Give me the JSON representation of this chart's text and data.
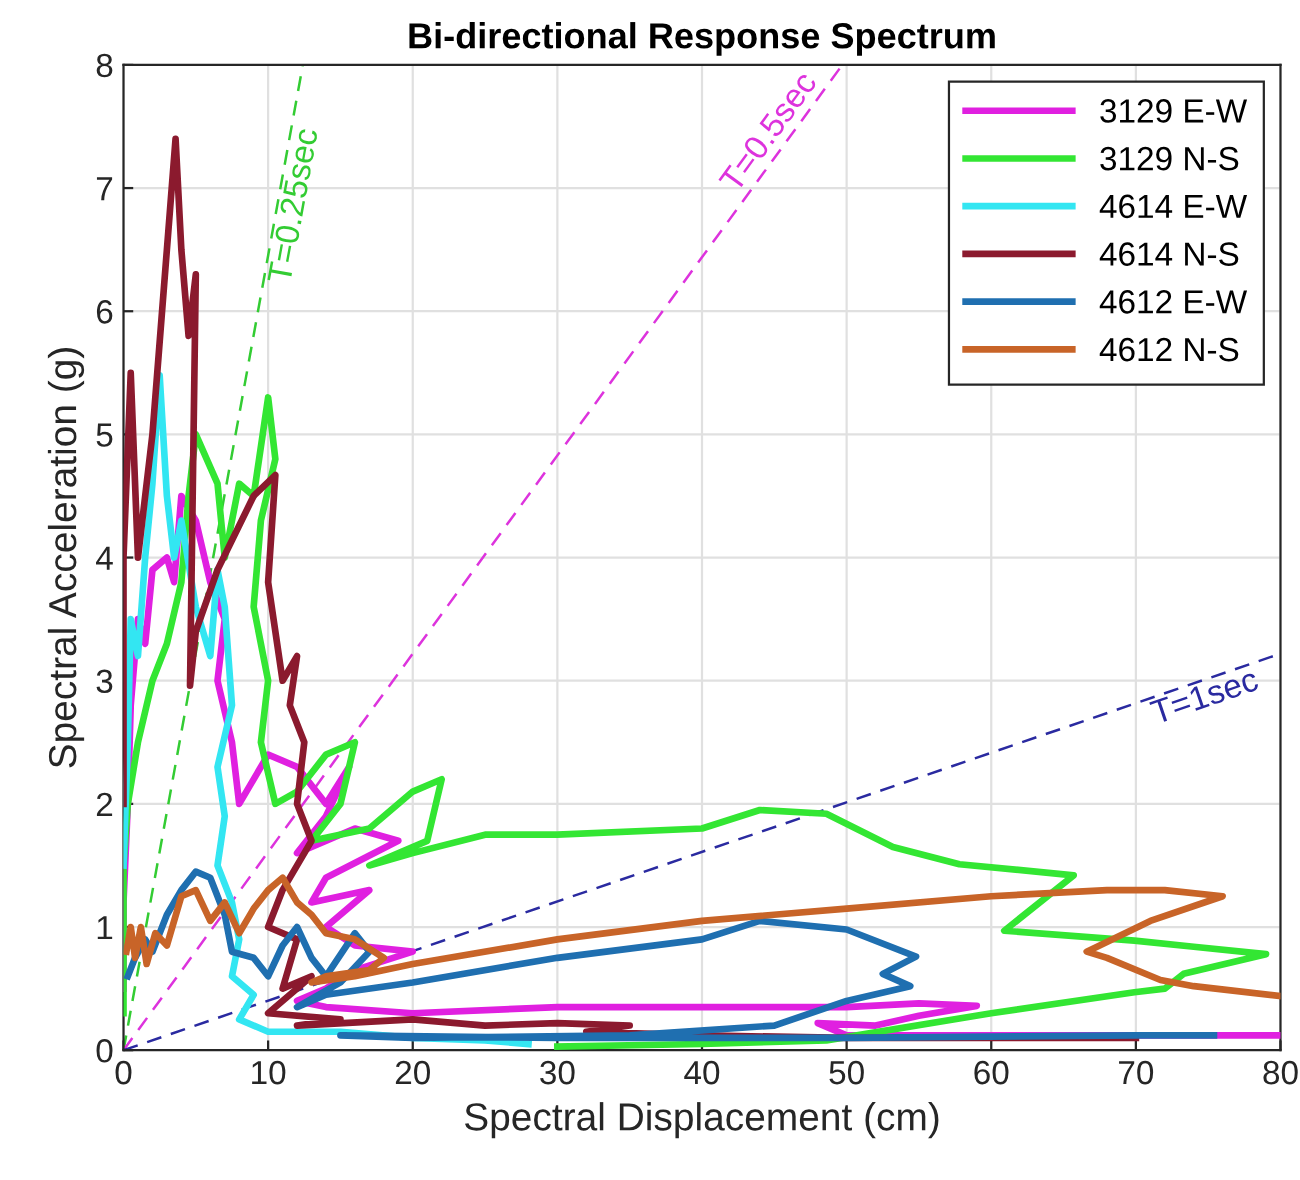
{
  "chart_data": {
    "type": "line",
    "title": "Bi-directional Response Spectrum",
    "xlabel": "Spectral Displacement (cm)",
    "ylabel": "Spectral Acceleration (g)",
    "xlim": [
      0,
      80
    ],
    "ylim": [
      0,
      8
    ],
    "xticks": [
      0,
      10,
      20,
      30,
      40,
      50,
      60,
      70,
      80
    ],
    "yticks": [
      0,
      1,
      2,
      3,
      4,
      5,
      6,
      7,
      8
    ],
    "grid": true,
    "legend": "top right",
    "line_style": "solid",
    "marker": "none",
    "series": [
      {
        "name": "3129 E-W",
        "color": "#e020e0",
        "x": [
          0,
          0,
          0.3,
          0.5,
          1,
          1.5,
          2,
          3,
          3.5,
          4,
          5,
          6,
          7,
          6.5,
          7.5,
          8,
          10,
          12,
          14,
          15.6,
          14,
          12,
          16,
          19,
          14,
          13,
          17,
          14,
          16,
          20,
          16,
          14,
          12,
          14,
          20,
          30,
          40,
          50,
          55,
          59,
          55,
          52,
          48,
          50,
          60,
          75,
          80
        ],
        "values": [
          0.5,
          1.2,
          2.0,
          2.8,
          3.5,
          3.3,
          3.9,
          4.0,
          3.8,
          4.5,
          4.3,
          3.8,
          3.5,
          3.0,
          2.5,
          2.0,
          2.4,
          2.3,
          2.0,
          2.3,
          1.9,
          1.6,
          1.8,
          1.7,
          1.4,
          1.2,
          1.3,
          1.0,
          0.85,
          0.8,
          0.65,
          0.5,
          0.4,
          0.35,
          0.3,
          0.35,
          0.35,
          0.35,
          0.38,
          0.36,
          0.28,
          0.2,
          0.22,
          0.12,
          0.12,
          0.12,
          0.12
        ]
      },
      {
        "name": "3129 N-S",
        "color": "#33e633",
        "x": [
          0,
          0,
          0,
          0.3,
          1,
          2,
          3,
          4,
          4.5,
          5,
          6.5,
          7,
          8,
          9,
          10,
          10.5,
          9.5,
          9,
          10,
          9.5,
          10.5,
          12,
          14,
          16,
          15,
          13,
          17,
          20,
          22,
          21,
          17,
          20,
          25,
          30,
          40,
          44,
          48.6,
          53.2,
          57.8,
          65.7,
          60.9,
          69.9,
          74,
          79,
          73.3,
          72,
          69.9,
          60,
          48.6,
          40,
          30
        ],
        "values": [
          0.3,
          1.0,
          1.5,
          2.0,
          2.5,
          3.0,
          3.3,
          3.8,
          4.5,
          5.0,
          4.6,
          4.0,
          4.6,
          4.5,
          5.3,
          4.8,
          4.3,
          3.6,
          3.0,
          2.5,
          2.0,
          2.1,
          2.4,
          2.5,
          2.0,
          1.7,
          1.8,
          2.1,
          2.2,
          1.7,
          1.5,
          1.6,
          1.75,
          1.75,
          1.8,
          1.95,
          1.92,
          1.65,
          1.51,
          1.42,
          0.97,
          0.89,
          0.84,
          0.78,
          0.62,
          0.5,
          0.47,
          0.3,
          0.08,
          0.05,
          0.03
        ]
      },
      {
        "name": "4614 E-W",
        "color": "#33e6f2",
        "x": [
          0,
          0.3,
          0.5,
          1,
          1.5,
          2,
          2.5,
          3,
          3.5,
          4,
          5,
          6,
          6.5,
          7,
          7.5,
          6.5,
          7,
          6.5,
          7.5,
          8,
          7.5,
          9,
          8,
          10,
          15,
          20,
          25,
          28
        ],
        "values": [
          1.5,
          2.5,
          3.5,
          3.2,
          4.0,
          4.6,
          5.48,
          4.5,
          4.0,
          4.3,
          3.6,
          3.2,
          3.9,
          3.6,
          2.8,
          2.3,
          1.9,
          1.5,
          1.2,
          0.9,
          0.6,
          0.45,
          0.25,
          0.15,
          0.15,
          0.1,
          0.08,
          0.05
        ]
      },
      {
        "name": "4614 N-S",
        "color": "#8b1a2e",
        "x": [
          0,
          0,
          0.5,
          1,
          1.5,
          2,
          3,
          3.6,
          4,
          4.5,
          5,
          4.6,
          5,
          6.5,
          9,
          10.5,
          10,
          11,
          12,
          11.5,
          12.5,
          12,
          13,
          11,
          10,
          12,
          11,
          13,
          10,
          15,
          12,
          20,
          25,
          30,
          35,
          32,
          40,
          50,
          60,
          70
        ],
        "values": [
          2.0,
          4.0,
          5.5,
          4.0,
          4.5,
          5.0,
          6.5,
          7.4,
          6.5,
          5.8,
          6.3,
          2.96,
          3.4,
          3.9,
          4.5,
          4.67,
          3.8,
          3.0,
          3.2,
          2.8,
          2.5,
          2.0,
          1.7,
          1.3,
          1.0,
          0.9,
          0.5,
          0.6,
          0.3,
          0.25,
          0.2,
          0.25,
          0.2,
          0.22,
          0.2,
          0.15,
          0.12,
          0.1,
          0.1,
          0.1
        ]
      },
      {
        "name": "4612 E-W",
        "color": "#1f6fb0",
        "x": [
          0.3,
          0.8,
          1.5,
          2,
          3,
          4,
          5,
          6,
          7,
          7.5,
          9,
          10,
          11,
          12,
          13,
          14,
          16,
          17,
          15,
          12,
          14,
          20,
          30,
          40,
          44,
          50,
          54.8,
          52.5,
          54.4,
          50,
          45,
          35,
          20,
          15,
          30,
          50,
          70,
          75.4
        ],
        "values": [
          0.6,
          0.75,
          0.9,
          0.8,
          1.1,
          1.3,
          1.45,
          1.4,
          1.1,
          0.8,
          0.75,
          0.6,
          0.85,
          1.0,
          0.75,
          0.6,
          0.95,
          0.8,
          0.55,
          0.35,
          0.45,
          0.55,
          0.75,
          0.9,
          1.05,
          0.98,
          0.76,
          0.62,
          0.52,
          0.4,
          0.2,
          0.12,
          0.1,
          0.12,
          0.1,
          0.1,
          0.12,
          0.12
        ]
      },
      {
        "name": "4612 N-S",
        "color": "#c86428",
        "x": [
          0.2,
          0.5,
          0.8,
          1.2,
          1.6,
          2.2,
          3,
          4,
          5,
          6,
          7,
          8,
          9,
          10,
          11,
          12,
          13,
          14,
          16,
          18,
          17,
          14,
          13,
          16,
          20,
          30,
          40,
          50,
          60,
          68,
          72,
          76,
          71,
          66.6,
          68,
          71.7,
          74,
          80
        ],
        "values": [
          0.8,
          1.0,
          0.75,
          1.0,
          0.7,
          0.95,
          0.85,
          1.25,
          1.3,
          1.05,
          1.2,
          0.95,
          1.15,
          1.3,
          1.4,
          1.2,
          1.1,
          0.95,
          0.9,
          0.75,
          0.65,
          0.6,
          0.55,
          0.6,
          0.7,
          0.9,
          1.05,
          1.15,
          1.25,
          1.3,
          1.3,
          1.25,
          1.05,
          0.8,
          0.75,
          0.57,
          0.52,
          0.44
        ]
      },
      {
        "type": "line",
        "line_style": "dashed",
        "color": "#33cc33",
        "x": [
          0,
          12.4
        ],
        "values": [
          0,
          8
        ]
      },
      {
        "type": "line",
        "line_style": "dashed",
        "color": "#dd33dd",
        "x": [
          0,
          49.7
        ],
        "values": [
          0,
          8
        ]
      },
      {
        "type": "line",
        "line_style": "dashed",
        "color": "#2a2aa0",
        "x": [
          0,
          80
        ],
        "values": [
          0,
          3.22
        ]
      }
    ],
    "annotations": [
      "T=0.25sec",
      "T=0.5sec",
      "T=1sec"
    ]
  }
}
